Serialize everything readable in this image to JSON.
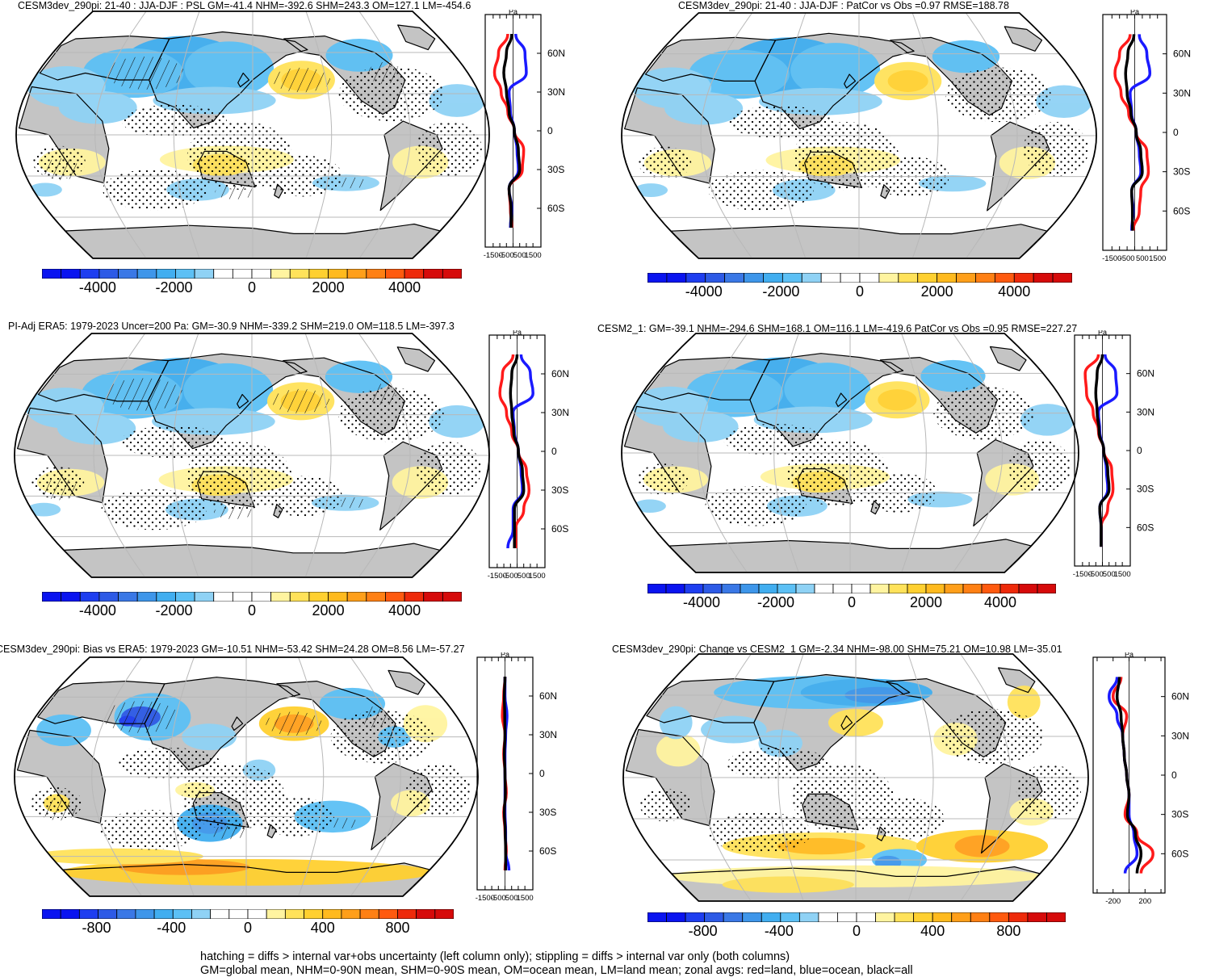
{
  "chart_data": [
    {
      "type": "heatmap",
      "panel": "model-mean",
      "title": "CESM3dev_290pi: 21-40 : JJA-DJF : PSL GM=-41.4 NHM=-392.6 SHM=243.3 OM=127.1 LM=-454.6",
      "colorbar": {
        "min": -5500,
        "max": 5500,
        "tick_labels": [
          "-4000",
          "-2000",
          "0",
          "2000",
          "4000"
        ]
      },
      "zonal": {
        "unit": "Pa",
        "xticks": [
          "-1500",
          "-500",
          "500",
          "1500"
        ],
        "lat_labels": [
          "60N",
          "30N",
          "0",
          "30S",
          "60S"
        ],
        "series": [
          {
            "name": "land",
            "color": "#ff1a1a",
            "lat": [
              75,
              60,
              45,
              30,
              15,
              0,
              -15,
              -30,
              -45,
              -60,
              -75
            ],
            "values": [
              -400,
              -1100,
              -1400,
              -900,
              -400,
              100,
              800,
              700,
              -300,
              -200,
              -100
            ]
          },
          {
            "name": "ocean",
            "color": "#1a1aff",
            "lat": [
              75,
              60,
              45,
              30,
              15,
              0,
              -15,
              -30,
              -45,
              -60,
              -75
            ],
            "values": [
              200,
              900,
              1000,
              -300,
              -200,
              100,
              300,
              400,
              -300,
              -100,
              -200
            ]
          },
          {
            "name": "all",
            "color": "#000000",
            "lat": [
              75,
              60,
              45,
              30,
              15,
              0,
              -15,
              -30,
              -45,
              -60,
              -75
            ],
            "values": [
              -100,
              -500,
              -700,
              -500,
              -300,
              100,
              400,
              500,
              -300,
              -150,
              -150
            ]
          }
        ]
      }
    },
    {
      "type": "heatmap",
      "panel": "model-patcor",
      "title": "CESM3dev_290pi: 21-40 : JJA-DJF : PatCor vs Obs =0.97 RMSE=188.78",
      "colorbar": {
        "min": -5500,
        "max": 5500,
        "tick_labels": [
          "-4000",
          "-2000",
          "0",
          "2000",
          "4000"
        ]
      },
      "zonal": {
        "unit": "Pa",
        "xticks": [
          "-1500",
          "-500",
          "500",
          "1500"
        ],
        "lat_labels": [
          "60N",
          "30N",
          "0",
          "30S",
          "60S"
        ],
        "series": [
          {
            "name": "land",
            "color": "#ff1a1a",
            "lat": [
              75,
              60,
              45,
              30,
              15,
              0,
              -15,
              -30,
              -45,
              -60,
              -75
            ],
            "values": [
              -300,
              -1000,
              -1300,
              -900,
              -400,
              100,
              800,
              900,
              400,
              300,
              -100
            ]
          },
          {
            "name": "ocean",
            "color": "#1a1aff",
            "lat": [
              75,
              60,
              45,
              30,
              15,
              0,
              -15,
              -30,
              -45,
              -60,
              -75
            ],
            "values": [
              300,
              800,
              1000,
              -300,
              -200,
              100,
              300,
              400,
              -200,
              -100,
              -200
            ]
          },
          {
            "name": "all",
            "color": "#000000",
            "lat": [
              75,
              60,
              45,
              30,
              15,
              0,
              -15,
              -30,
              -45,
              -60,
              -75
            ],
            "values": [
              -50,
              -450,
              -600,
              -500,
              -250,
              100,
              400,
              500,
              -200,
              -150,
              -150
            ]
          }
        ]
      }
    },
    {
      "type": "heatmap",
      "panel": "obs",
      "title": "PI-Adj ERA5: 1979-2023 Uncer=200 Pa: GM=-30.9 NHM=-339.2 SHM=219.0 OM=118.5 LM=-397.3",
      "colorbar": {
        "min": -5500,
        "max": 5500,
        "tick_labels": [
          "-4000",
          "-2000",
          "0",
          "2000",
          "4000"
        ]
      },
      "zonal": {
        "unit": "Pa",
        "xticks": [
          "-1500",
          "-500",
          "500",
          "1500"
        ],
        "lat_labels": [
          "60N",
          "30N",
          "0",
          "30S",
          "60S"
        ],
        "series": [
          {
            "name": "land",
            "color": "#ff1a1a",
            "lat": [
              75,
              60,
              45,
              30,
              15,
              0,
              -15,
              -30,
              -45,
              -60,
              -75
            ],
            "values": [
              -300,
              -1100,
              -1300,
              -800,
              -400,
              100,
              700,
              900,
              500,
              -100,
              -100
            ]
          },
          {
            "name": "ocean",
            "color": "#1a1aff",
            "lat": [
              75,
              60,
              45,
              30,
              15,
              0,
              -15,
              -30,
              -45,
              -60,
              -75
            ],
            "values": [
              300,
              1000,
              1200,
              -300,
              -200,
              100,
              300,
              400,
              -300,
              -300,
              -700
            ]
          },
          {
            "name": "all",
            "color": "#000000",
            "lat": [
              75,
              60,
              45,
              30,
              15,
              0,
              -15,
              -30,
              -45,
              -60,
              -75
            ],
            "values": [
              0,
              -400,
              -500,
              -400,
              -250,
              100,
              400,
              500,
              -200,
              -200,
              -200
            ]
          }
        ]
      }
    },
    {
      "type": "heatmap",
      "panel": "cesm2",
      "title": "CESM2_1: GM=-39.1 NHM=-294.6 SHM=168.1 OM=116.1 LM=-419.6 PatCor vs Obs =0.95 RMSE=227.27",
      "colorbar": {
        "min": -5500,
        "max": 5500,
        "tick_labels": [
          "-4000",
          "-2000",
          "0",
          "2000",
          "4000"
        ]
      },
      "zonal": {
        "unit": "Pa",
        "xticks": [
          "-1500",
          "-500",
          "500",
          "1500"
        ],
        "lat_labels": [
          "60N",
          "30N",
          "0",
          "30S",
          "60S"
        ],
        "series": [
          {
            "name": "land",
            "color": "#ff1a1a",
            "lat": [
              75,
              60,
              45,
              30,
              15,
              0,
              -15,
              -30,
              -45,
              -60,
              -75
            ],
            "values": [
              -300,
              -1300,
              -1200,
              -700,
              -300,
              100,
              700,
              800,
              400,
              -100,
              -100
            ]
          },
          {
            "name": "ocean",
            "color": "#1a1aff",
            "lat": [
              75,
              60,
              45,
              30,
              15,
              0,
              -15,
              -30,
              -45,
              -60,
              -75
            ],
            "values": [
              200,
              1000,
              1100,
              -300,
              -200,
              100,
              300,
              400,
              -200,
              -100,
              -100
            ]
          },
          {
            "name": "all",
            "color": "#000000",
            "lat": [
              75,
              60,
              45,
              30,
              15,
              0,
              -15,
              -30,
              -45,
              -60,
              -75
            ],
            "values": [
              0,
              -400,
              -500,
              -400,
              -250,
              100,
              400,
              500,
              -200,
              -100,
              -100
            ]
          }
        ]
      }
    },
    {
      "type": "heatmap",
      "panel": "bias",
      "title": "CESM3dev_290pi: Bias vs ERA5: 1979-2023 GM=-10.51 NHM=-53.42 SHM=24.28 OM=8.56 LM=-57.27",
      "colorbar": {
        "min": -1100,
        "max": 1100,
        "tick_labels": [
          "-800",
          "-400",
          "0",
          "400",
          "800"
        ]
      },
      "zonal": {
        "unit": "Pa",
        "xticks": [
          "-1500",
          "-500",
          "500",
          "1500"
        ],
        "lat_labels": [
          "60N",
          "30N",
          "0",
          "30S",
          "60S"
        ],
        "series": [
          {
            "name": "land",
            "color": "#ff1a1a",
            "lat": [
              75,
              60,
              45,
              30,
              15,
              0,
              -15,
              -30,
              -45,
              -60,
              -75
            ],
            "values": [
              0,
              -100,
              -200,
              0,
              -100,
              0,
              100,
              -100,
              0,
              100,
              0
            ]
          },
          {
            "name": "ocean",
            "color": "#1a1aff",
            "lat": [
              75,
              60,
              45,
              30,
              15,
              0,
              -15,
              -30,
              -45,
              -60,
              -75
            ],
            "values": [
              0,
              0,
              150,
              50,
              0,
              0,
              0,
              0,
              50,
              50,
              300
            ]
          },
          {
            "name": "all",
            "color": "#000000",
            "lat": [
              75,
              60,
              45,
              30,
              15,
              0,
              -15,
              -30,
              -45,
              -60,
              -75
            ],
            "values": [
              0,
              -50,
              -20,
              0,
              -50,
              0,
              30,
              -50,
              20,
              50,
              50
            ]
          }
        ]
      }
    },
    {
      "type": "heatmap",
      "panel": "change",
      "title": "CESM3dev_290pi: Change vs CESM2_1 GM=-2.34 NHM=-98.00 SHM=75.21 OM=10.98 LM=-35.01",
      "colorbar": {
        "min": -1100,
        "max": 1100,
        "tick_labels": [
          "-800",
          "-400",
          "0",
          "400",
          "800"
        ]
      },
      "zonal": {
        "unit": "Pa",
        "xticks": [
          "-200",
          "200"
        ],
        "lat_labels": [
          "60N",
          "30N",
          "0",
          "30S",
          "60S"
        ],
        "series": [
          {
            "name": "land",
            "color": "#ff1a1a",
            "lat": [
              75,
              60,
              45,
              30,
              15,
              0,
              -15,
              -30,
              -45,
              -60,
              -75
            ],
            "values": [
              -100,
              -200,
              -30,
              -80,
              -60,
              -30,
              0,
              -50,
              100,
              300,
              150
            ]
          },
          {
            "name": "ocean",
            "color": "#1a1aff",
            "lat": [
              75,
              60,
              45,
              30,
              15,
              0,
              -15,
              -30,
              -45,
              -60,
              -75
            ],
            "values": [
              -150,
              -250,
              -150,
              -80,
              -60,
              -30,
              0,
              0,
              60,
              100,
              -50
            ]
          },
          {
            "name": "all",
            "color": "#000000",
            "lat": [
              75,
              60,
              45,
              30,
              15,
              0,
              -15,
              -30,
              -45,
              -60,
              -75
            ],
            "values": [
              -120,
              -150,
              -100,
              -80,
              -60,
              -30,
              0,
              -20,
              80,
              150,
              100
            ]
          }
        ]
      }
    }
  ],
  "footer": {
    "line1": "hatching = diffs > internal var+obs uncertainty (left column only); stippling = diffs > internal var only (both columns)",
    "line2": "GM=global mean, NHM=0-90N mean, SHM=0-90S mean, OM=ocean mean, LM=land mean; zonal avgs: red=land, blue=ocean, black=all"
  }
}
